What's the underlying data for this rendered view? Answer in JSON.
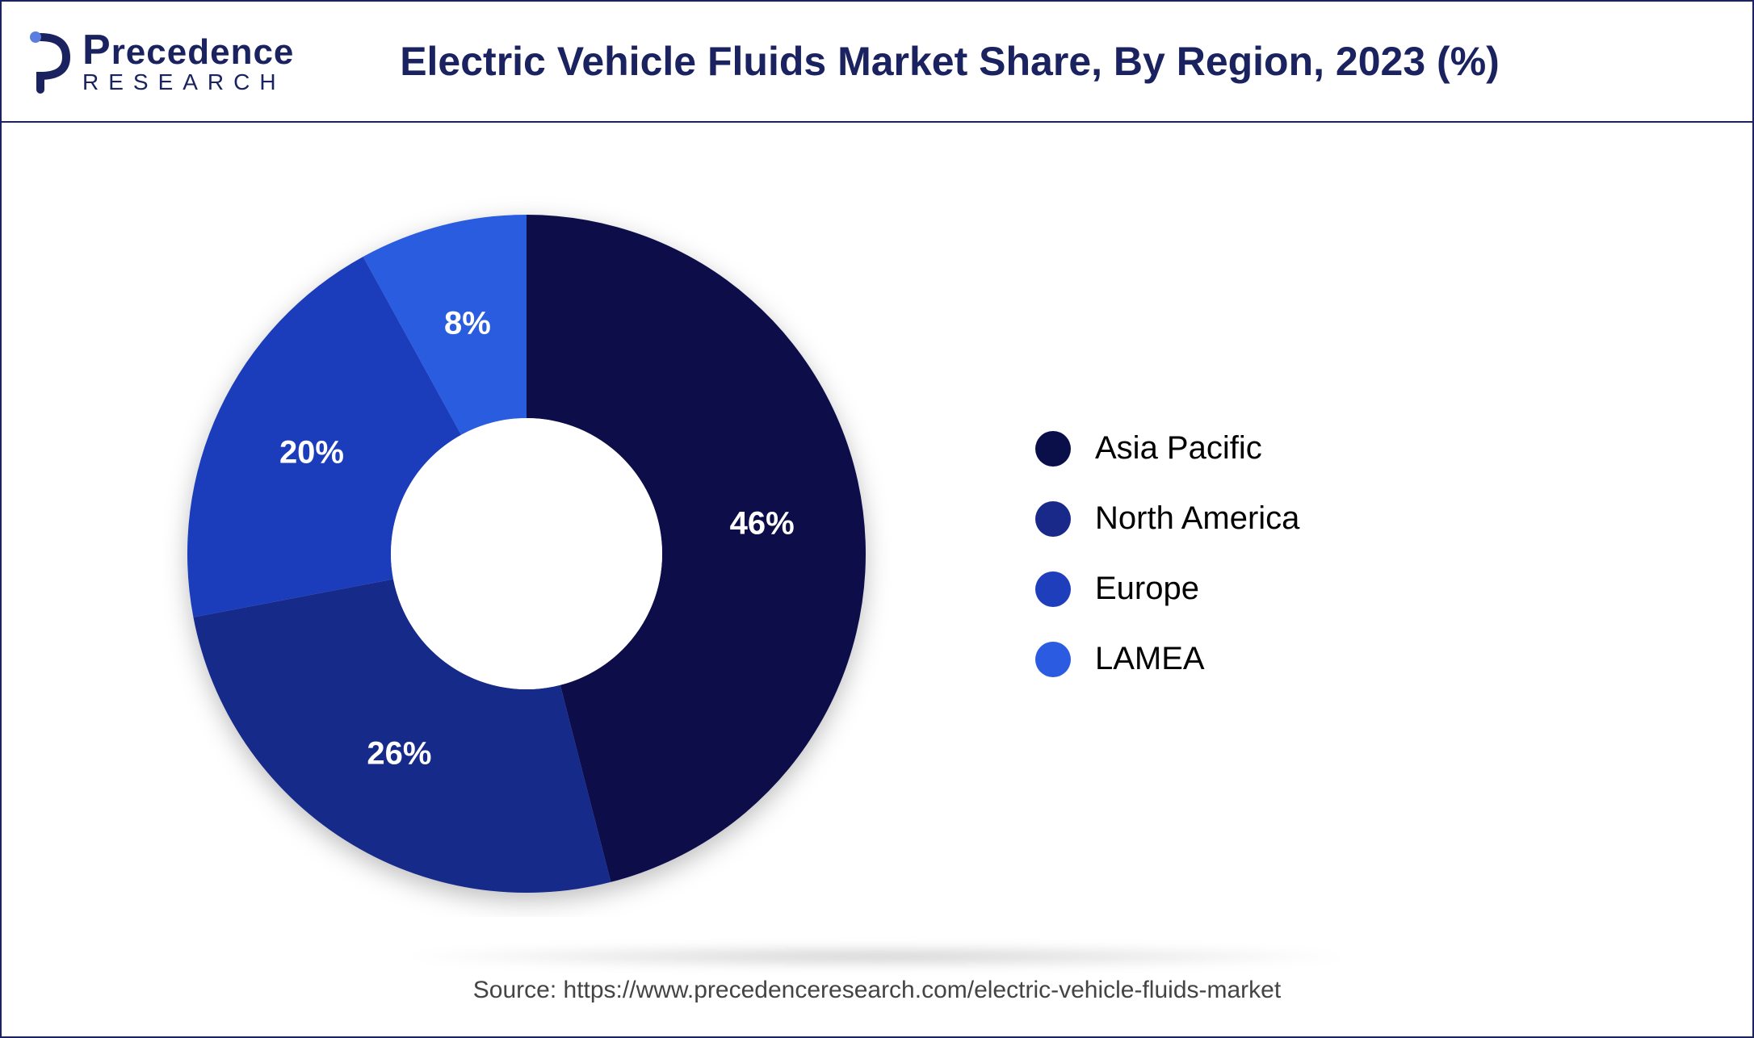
{
  "logo": {
    "brand_main": "recedence",
    "brand_first_letter": "P",
    "brand_sub": "RESEARCH",
    "color": "#1a2360"
  },
  "title": "Electric Vehicle Fluids Market Share, By Region, 2023 (%)",
  "chart": {
    "type": "donut",
    "background_color": "#ffffff",
    "inner_radius_ratio": 0.4,
    "outer_radius": 420,
    "start_angle_deg": 0,
    "slices": [
      {
        "label": "Asia Pacific",
        "value": 46,
        "color": "#0a0f4a",
        "display": "46%"
      },
      {
        "label": "North America",
        "value": 26,
        "color": "#18298a",
        "display": "26%"
      },
      {
        "label": "Europe",
        "value": 20,
        "color": "#1e3ebb",
        "display": "20%"
      },
      {
        "label": "LAMEA",
        "value": 8,
        "color": "#2a5be0",
        "display": "8%"
      }
    ],
    "label_fontsize": 40,
    "label_color": "#ffffff",
    "label_fontweight": 700,
    "legend_fontsize": 40,
    "legend_color": "#000000",
    "legend_dot_radius": 22
  },
  "footer": "Source: https://www.precedenceresearch.com/electric-vehicle-fluids-market"
}
